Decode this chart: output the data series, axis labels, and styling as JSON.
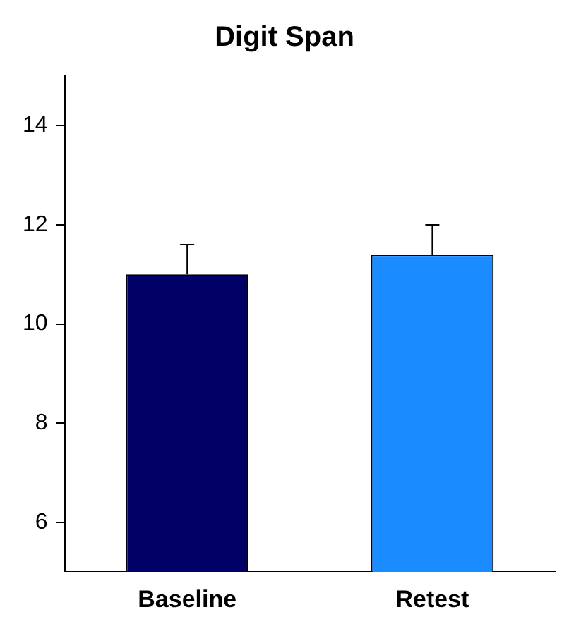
{
  "chart_data": {
    "type": "bar",
    "title": "Digit Span",
    "categories": [
      "Baseline",
      "Retest"
    ],
    "values": [
      11.0,
      11.4
    ],
    "colors": [
      "#000066",
      "#1a8cff"
    ],
    "errors": [
      [
        11.0,
        11.6
      ],
      [
        11.4,
        12.0
      ]
    ],
    "ylim": [
      5,
      15
    ],
    "yticks": [
      6,
      8,
      10,
      12,
      14
    ],
    "grid": false,
    "legend": false
  }
}
